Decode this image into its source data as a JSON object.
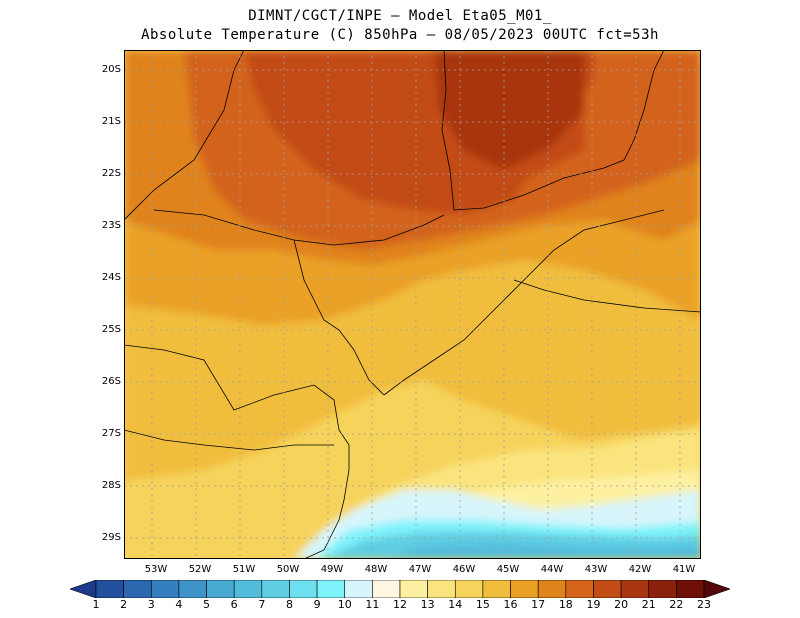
{
  "header": {
    "line1": "DIMNT/CGCT/INPE –  Model Eta05_M01_",
    "line2": "Absolute Temperature (C) 850hPa –  08/05/2023 00UTC fct=53h"
  },
  "map": {
    "lat_labels": [
      "20S",
      "21S",
      "22S",
      "23S",
      "24S",
      "25S",
      "26S",
      "27S",
      "28S",
      "29S"
    ],
    "lon_labels": [
      "53W",
      "52W",
      "51W",
      "50W",
      "49W",
      "48W",
      "47W",
      "46W",
      "45W",
      "44W",
      "43W",
      "42W",
      "41W"
    ],
    "field": "Absolute Temperature (C) 850hPa",
    "warmest_region": "northern Sao Paulo / Minas Gerais (~20-21 C)",
    "coolest_region": "offshore southeast near 29S (~9-11 C)"
  },
  "colorbar": {
    "labels": [
      "1",
      "2",
      "3",
      "4",
      "5",
      "6",
      "7",
      "8",
      "9",
      "10",
      "11",
      "12",
      "13",
      "14",
      "15",
      "16",
      "17",
      "18",
      "19",
      "20",
      "21",
      "22",
      "23"
    ],
    "colors": [
      "#1b3a8c",
      "#22509e",
      "#2c68b0",
      "#357fbe",
      "#3e94c8",
      "#48a9d2",
      "#52bcdb",
      "#5fcde2",
      "#6edff0",
      "#7ff3fb",
      "#d7f5fb",
      "#fdf6e0",
      "#fdf0a0",
      "#fbe47e",
      "#f6d35b",
      "#f1bd3c",
      "#eaa126",
      "#e0831a",
      "#d3641a",
      "#c24c16",
      "#a93610",
      "#8b210b",
      "#6e0f08",
      "#52070a"
    ]
  }
}
